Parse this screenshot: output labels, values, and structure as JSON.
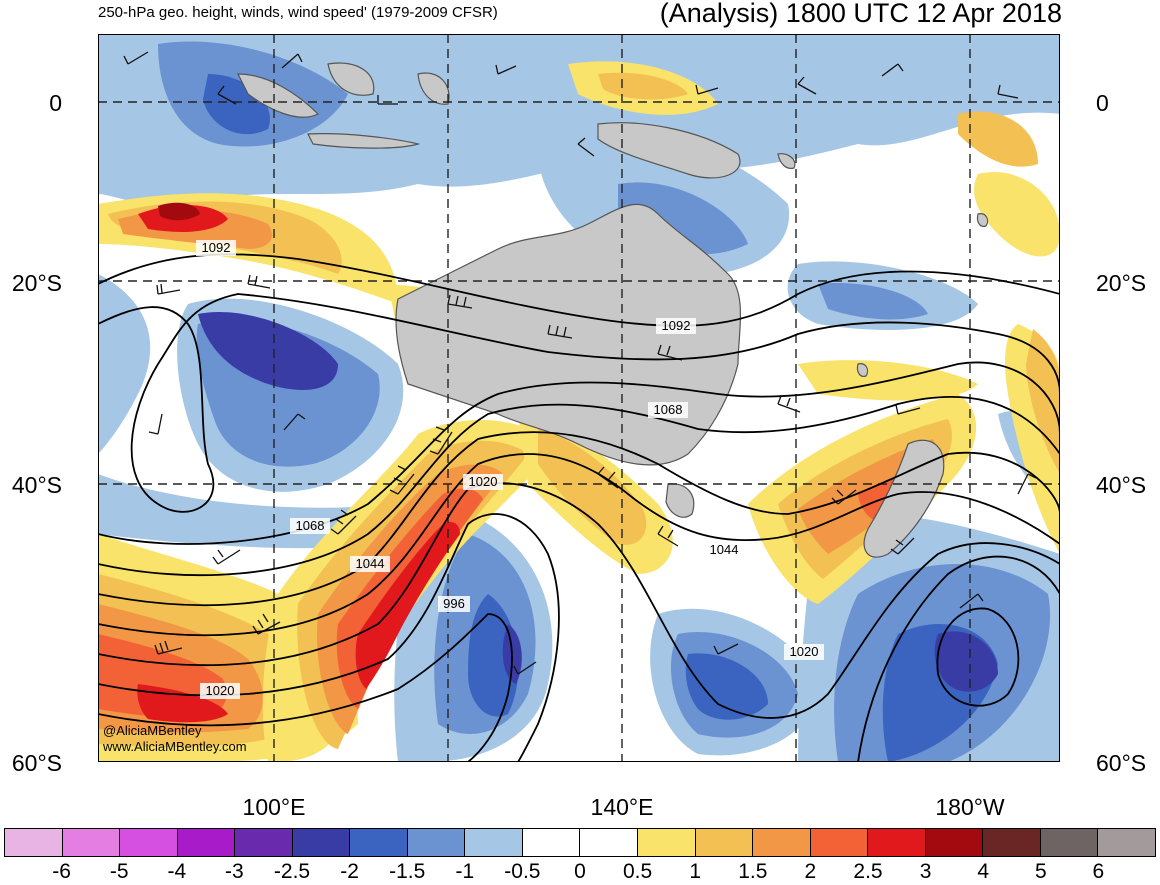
{
  "header": {
    "subtitle": "250-hPa geo. height, winds, wind speed' (1979-2009 CFSR)",
    "title": "(Analysis) 1800 UTC 12 Apr 2018"
  },
  "map": {
    "latitude_labels": [
      "0",
      "20°S",
      "40°S",
      "60°S"
    ],
    "longitude_labels": [
      "100°E",
      "140°E",
      "180°W"
    ],
    "contour_labels": [
      "1092",
      "1092",
      "1068",
      "1068",
      "1044",
      "1044",
      "1020",
      "1020",
      "996",
      "1020"
    ],
    "credit": [
      "@AliciaMBentley",
      "www.AliciaMBentley.com"
    ],
    "land_color": "#c8c8c8",
    "coast_color": "#555555"
  },
  "colorbar": {
    "labels": [
      "-6",
      "-5",
      "-4",
      "-3",
      "-2.5",
      "-2",
      "-1.5",
      "-1",
      "-0.5",
      "0",
      "0.5",
      "1",
      "1.5",
      "2",
      "2.5",
      "3",
      "4",
      "5",
      "6"
    ],
    "colors": [
      "#e8b4e4",
      "#e57ee3",
      "#d54fe0",
      "#a81bc9",
      "#6a2aae",
      "#3a3ca6",
      "#3a64c0",
      "#6b93d2",
      "#a6c6e6",
      "#ffffff",
      "#ffffff",
      "#f9e36a",
      "#f3c053",
      "#f19745",
      "#f26236",
      "#e2191c",
      "#a30a10",
      "#6a2525",
      "#6e6464",
      "#a39b9b"
    ]
  }
}
